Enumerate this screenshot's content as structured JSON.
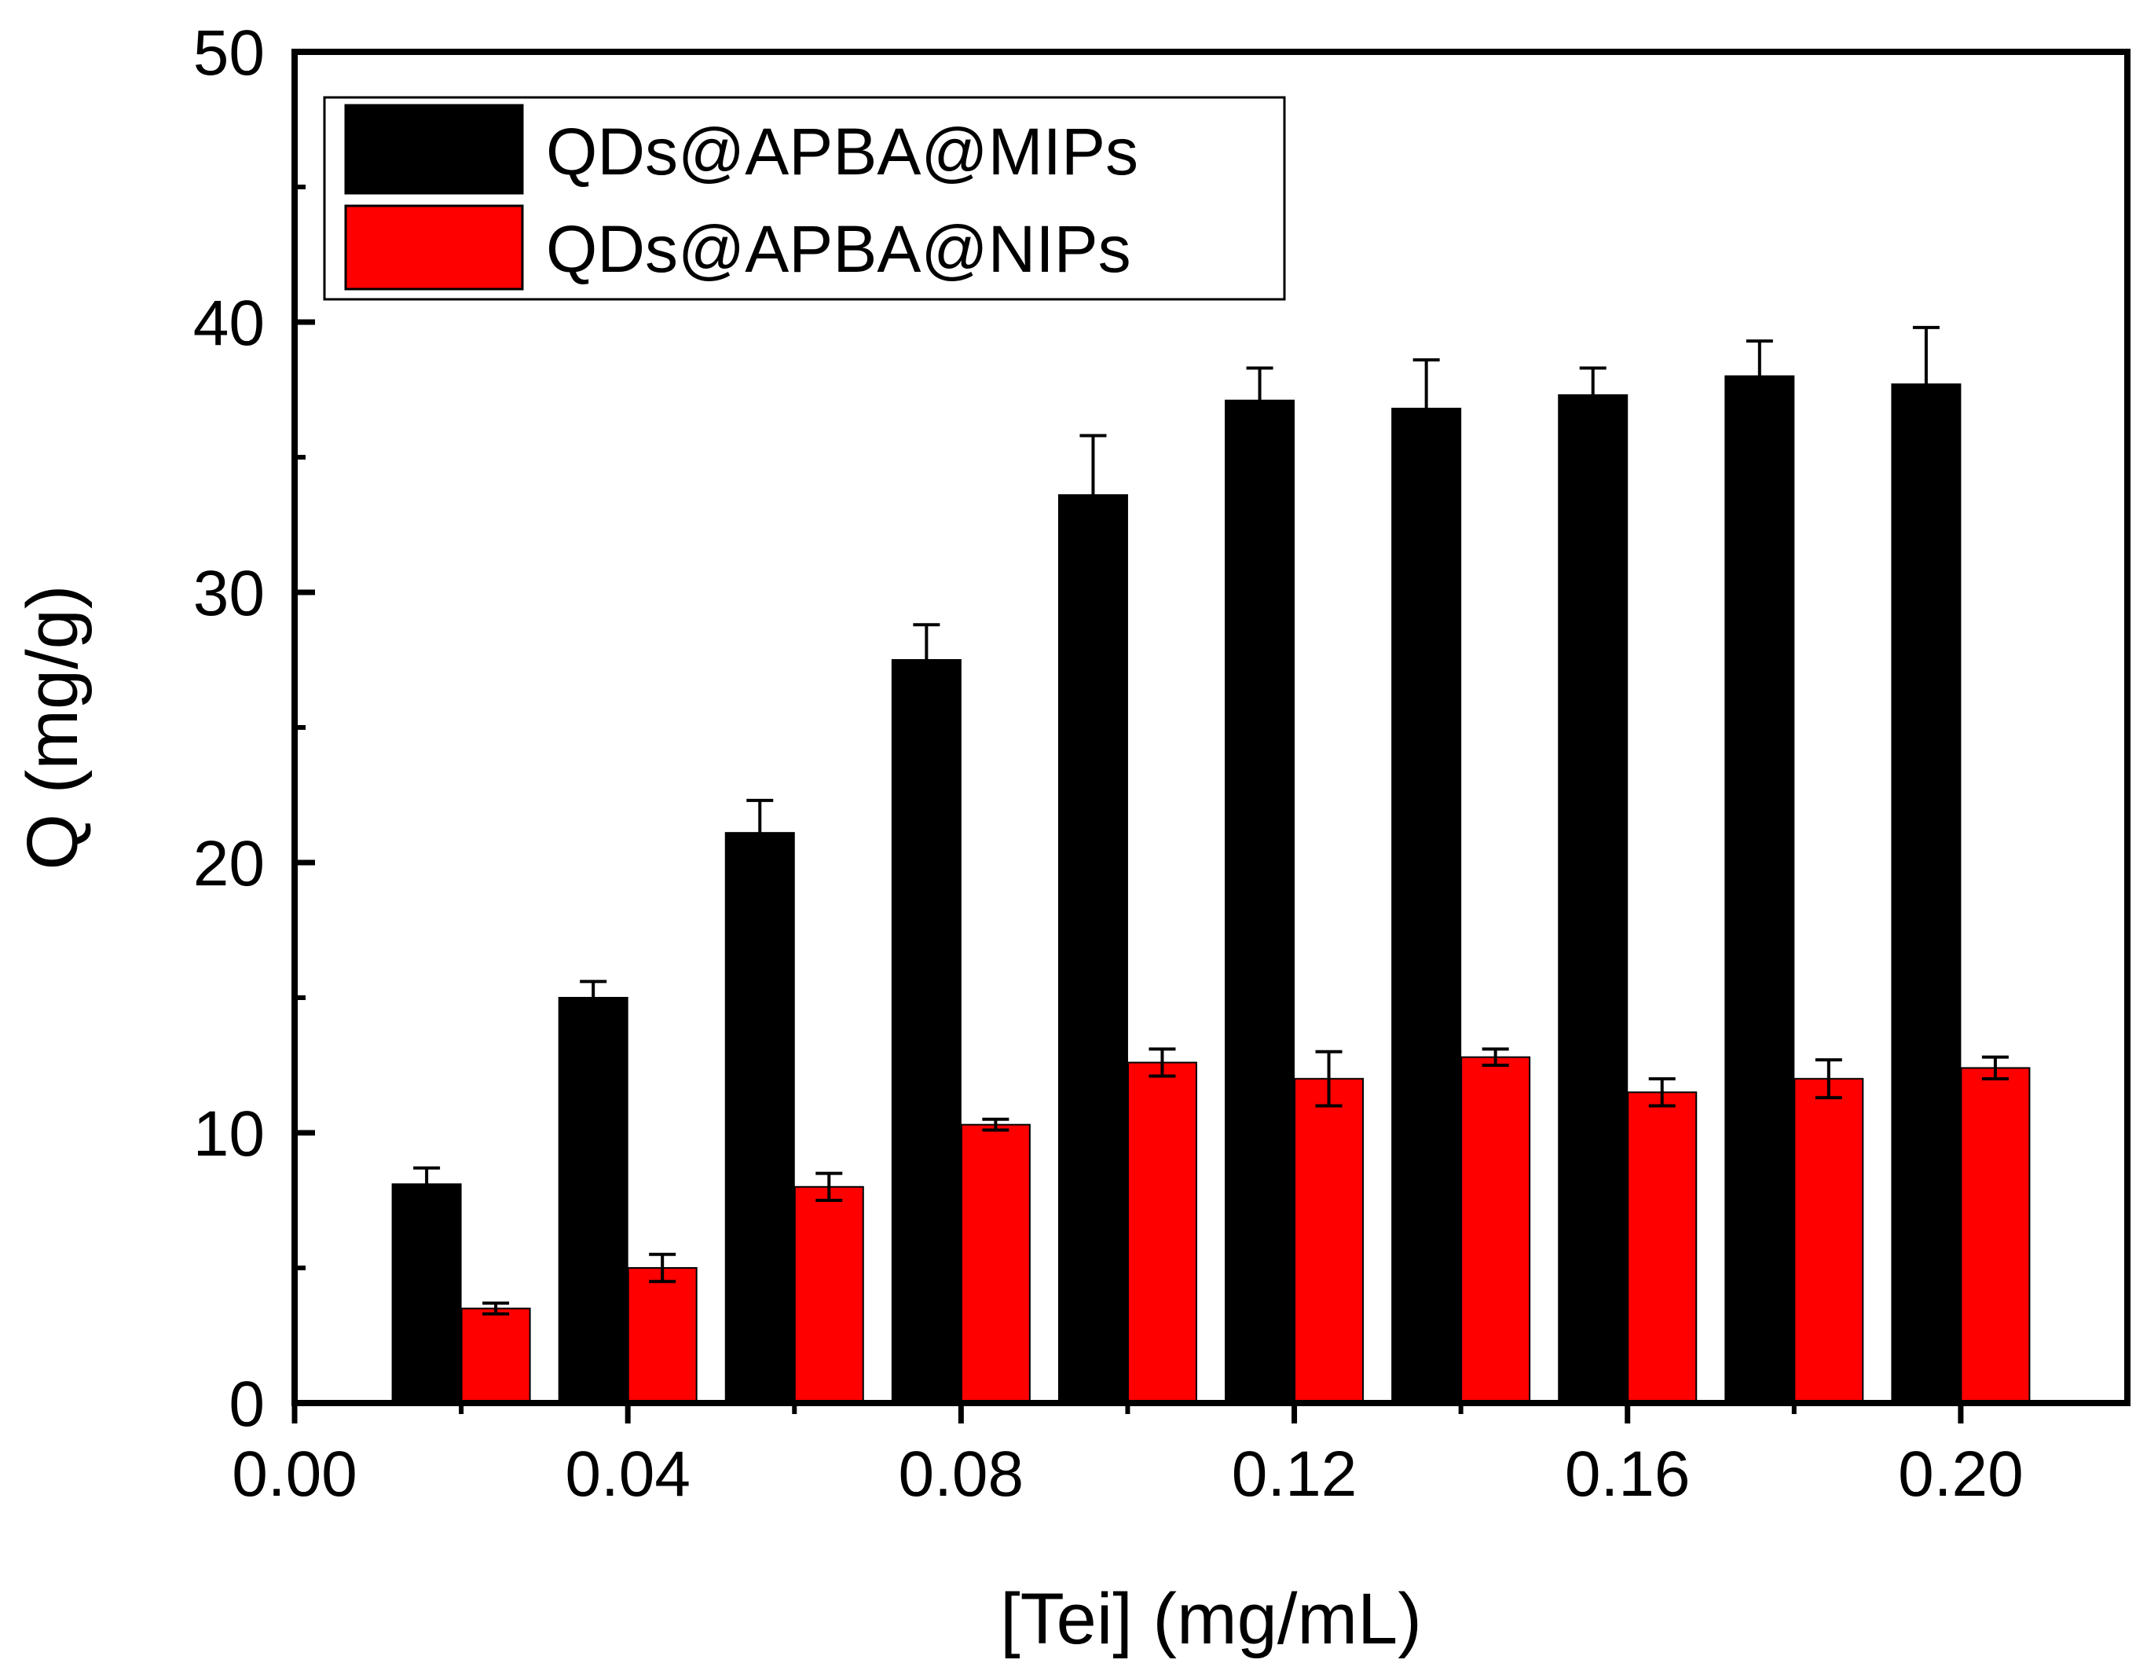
{
  "chart_data": {
    "type": "bar",
    "title": "",
    "xlabel": "[Tei] (mg/mL)",
    "ylabel": "Q (mg/g)",
    "xlim": [
      0.0,
      0.22
    ],
    "ylim": [
      0,
      50
    ],
    "x_ticks": [
      0.0,
      0.04,
      0.08,
      0.12,
      0.16,
      0.2
    ],
    "x_tick_labels": [
      "0.00",
      "0.04",
      "0.08",
      "0.12",
      "0.16",
      "0.20"
    ],
    "y_ticks": [
      0,
      10,
      20,
      30,
      40,
      50
    ],
    "y_tick_labels": [
      "0",
      "10",
      "20",
      "30",
      "40",
      "50"
    ],
    "y_minor_step": 5,
    "x": [
      0.02,
      0.04,
      0.06,
      0.08,
      0.1,
      0.12,
      0.14,
      0.16,
      0.18,
      0.2
    ],
    "grid": false,
    "legend_position": "top-left",
    "series": [
      {
        "name": "QDs@APBA@MIPs",
        "color": "#000000",
        "values": [
          8.1,
          15.0,
          21.1,
          27.5,
          33.6,
          37.1,
          36.8,
          37.3,
          38.0,
          37.7
        ],
        "errors": [
          0.6,
          0.6,
          1.2,
          1.3,
          2.2,
          1.2,
          1.8,
          1.0,
          1.3,
          2.1
        ]
      },
      {
        "name": "QDs@APBA@NIPs",
        "color": "#ff0000",
        "values": [
          3.5,
          5.0,
          8.0,
          10.3,
          12.6,
          12.0,
          12.8,
          11.5,
          12.0,
          12.4
        ],
        "errors": [
          0.2,
          0.5,
          0.5,
          0.2,
          0.5,
          1.0,
          0.3,
          0.5,
          0.7,
          0.4
        ]
      }
    ]
  }
}
